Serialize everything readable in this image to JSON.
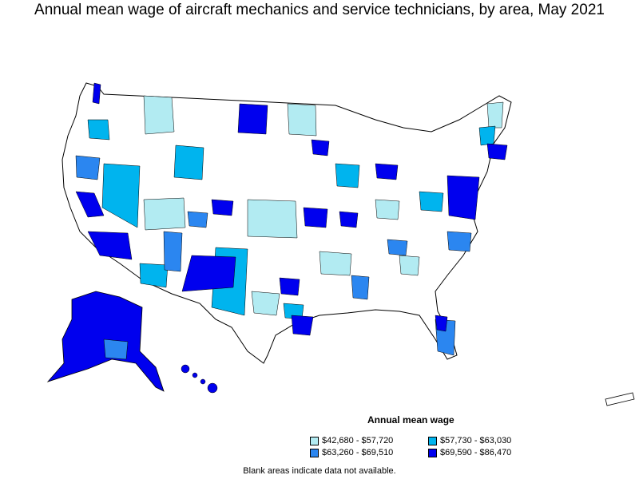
{
  "title": "Annual mean wage of aircraft mechanics and service technicians, by area, May 2021",
  "legend": {
    "title": "Annual mean wage",
    "items": [
      {
        "label": "$42,680 - $57,720",
        "color": "#b2ebf2"
      },
      {
        "label": "$57,730 - $63,030",
        "color": "#00b4ee"
      },
      {
        "label": "$63,260 - $69,510",
        "color": "#2b86f0"
      },
      {
        "label": "$69,590 - $86,470",
        "color": "#0000ee"
      }
    ]
  },
  "footnote": "Blank areas indicate data not available.",
  "colors": {
    "no_data": "#ffffff",
    "border": "#000000"
  }
}
